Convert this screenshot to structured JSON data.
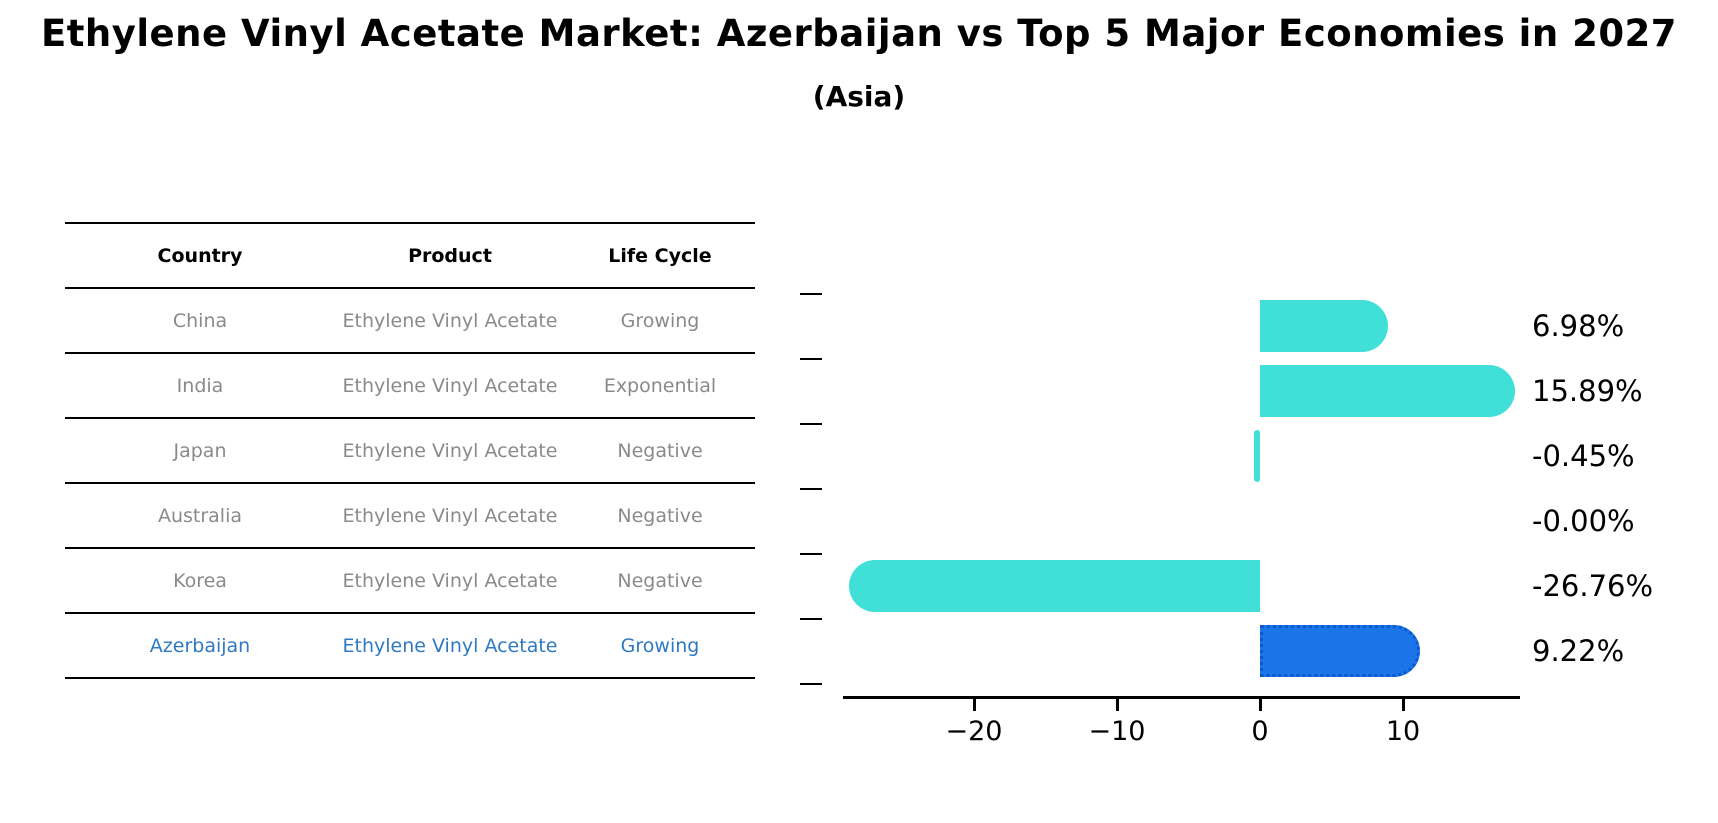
{
  "title": "Ethylene Vinyl Acetate Market: Azerbaijan vs Top 5 Major Economies in 2027",
  "subtitle": "(Asia)",
  "table": {
    "headers": {
      "country": "Country",
      "product": "Product",
      "life_cycle": "Life Cycle"
    },
    "rows": [
      {
        "country": "China",
        "product": "Ethylene Vinyl Acetate",
        "life_cycle": "Growing"
      },
      {
        "country": "India",
        "product": "Ethylene Vinyl Acetate",
        "life_cycle": "Exponential"
      },
      {
        "country": "Japan",
        "product": "Ethylene Vinyl Acetate",
        "life_cycle": "Negative"
      },
      {
        "country": "Australia",
        "product": "Ethylene Vinyl Acetate",
        "life_cycle": "Negative"
      },
      {
        "country": "Korea",
        "product": "Ethylene Vinyl Acetate",
        "life_cycle": "Negative"
      },
      {
        "country": "Azerbaijan",
        "product": "Ethylene Vinyl Acetate",
        "life_cycle": "Growing"
      }
    ],
    "highlight_row_index": 5
  },
  "chart_data": {
    "type": "bar",
    "orientation": "horizontal",
    "categories": [
      "China",
      "India",
      "Japan",
      "Australia",
      "Korea",
      "Azerbaijan"
    ],
    "values": [
      6.98,
      15.89,
      -0.45,
      -0.0,
      -26.76,
      9.22
    ],
    "value_labels": [
      "6.98%",
      "15.89%",
      "-0.45%",
      "-0.00%",
      "-26.76%",
      "9.22%"
    ],
    "x_ticks": [
      -20,
      -10,
      0,
      10
    ],
    "x_tick_labels": [
      "−20",
      "−10",
      "0",
      "10"
    ],
    "xlim": [
      -29,
      18
    ],
    "grid": false,
    "legend": false,
    "highlight_index": 5
  },
  "colors": {
    "bar": "#40e0d8",
    "highlight_bar": "#1b75e8",
    "highlight_bar_border": "#0a59cc",
    "highlight_text": "#2e79c2",
    "table_text": "#8a8a8a",
    "axis": "#000000"
  }
}
